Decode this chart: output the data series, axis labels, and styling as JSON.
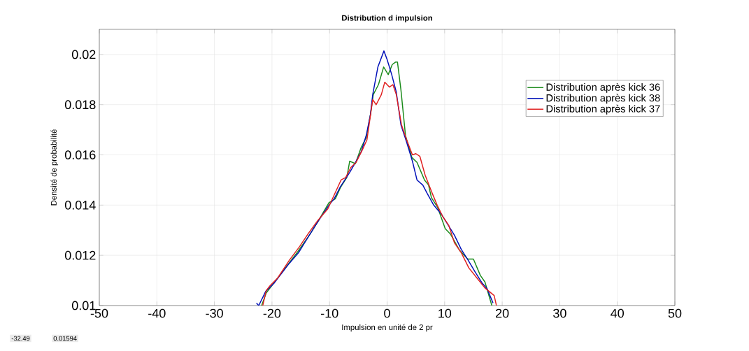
{
  "chart_data": {
    "type": "line",
    "title": "Distribution d impulsion",
    "xlabel": "Impulsion en unité de 2 pr",
    "ylabel": "Densité de probabilité",
    "xlim": [
      -50,
      50
    ],
    "ylim": [
      0.01,
      0.021
    ],
    "xticks": [
      -50,
      -40,
      -30,
      -20,
      -10,
      0,
      10,
      20,
      30,
      40,
      50
    ],
    "yticks": [
      0.01,
      0.012,
      0.014,
      0.016,
      0.018,
      0.02
    ],
    "grid": true,
    "legend": "right",
    "line_style": "solid",
    "marker": "none",
    "annotations": [
      "-32.49",
      "0.01594"
    ],
    "series": [
      {
        "name": "Distribution après kick 36",
        "color": "#1a8a1a",
        "x": [
          -21.8,
          -21.0,
          -19.5,
          -17.0,
          -15.5,
          -13.8,
          -12.0,
          -10.1,
          -9.0,
          -8.1,
          -7.0,
          -6.5,
          -5.5,
          -4.5,
          -3.6,
          -2.9,
          -2.4,
          -1.5,
          -0.6,
          0.2,
          0.9,
          1.5,
          1.8,
          2.4,
          3.2,
          4.3,
          5.2,
          6.5,
          7.2,
          7.7,
          8.8,
          10.1,
          11.0,
          12.6,
          14.0,
          15.0,
          16.2,
          17.0,
          18.2
        ],
        "values": [
          0.01,
          0.0105,
          0.01095,
          0.0117,
          0.01215,
          0.0127,
          0.01335,
          0.0141,
          0.01425,
          0.0147,
          0.0151,
          0.01575,
          0.01565,
          0.0163,
          0.0167,
          0.0176,
          0.0184,
          0.0188,
          0.0195,
          0.0192,
          0.0196,
          0.0197,
          0.0197,
          0.0186,
          0.01677,
          0.0159,
          0.0157,
          0.015,
          0.0148,
          0.0143,
          0.0139,
          0.01306,
          0.01285,
          0.0122,
          0.01185,
          0.01185,
          0.0112,
          0.01094,
          0.01
        ]
      },
      {
        "name": "Distribution après kick 38",
        "color": "#0010b8",
        "x": [
          -22.7,
          -22.3,
          -21.1,
          -19.6,
          -17.0,
          -15.4,
          -13.8,
          -12.0,
          -10.1,
          -9.2,
          -8.1,
          -6.5,
          -5.5,
          -4.5,
          -3.6,
          -2.9,
          -2.5,
          -1.6,
          -0.55,
          0.0,
          0.8,
          1.6,
          2.4,
          3.4,
          4.4,
          5.2,
          6.2,
          7.0,
          8.1,
          9.4,
          10.5,
          11.7,
          12.9,
          14.1,
          15.4,
          16.5,
          17.4,
          18.4
        ],
        "values": [
          0.0101,
          0.01,
          0.01056,
          0.0109,
          0.01168,
          0.0121,
          0.0127,
          0.01335,
          0.014,
          0.01425,
          0.01474,
          0.0153,
          0.0157,
          0.01612,
          0.0168,
          0.0176,
          0.0184,
          0.0195,
          0.02014,
          0.0198,
          0.0192,
          0.0185,
          0.0172,
          0.0165,
          0.01575,
          0.015,
          0.0148,
          0.01445,
          0.014,
          0.01365,
          0.01325,
          0.0128,
          0.01223,
          0.0118,
          0.0113,
          0.0109,
          0.01066,
          0.0101
        ]
      },
      {
        "name": "Distribution après kick 37",
        "color": "#e02020",
        "x": [
          -21.6,
          -21.0,
          -20.3,
          -19.0,
          -17.0,
          -15.2,
          -13.6,
          -12.0,
          -10.3,
          -9.2,
          -8.0,
          -7.2,
          -6.3,
          -5.4,
          -4.3,
          -3.5,
          -2.5,
          -1.9,
          -1.0,
          -0.4,
          0.4,
          1.0,
          1.6,
          2.5,
          3.4,
          4.4,
          5.0,
          5.7,
          6.6,
          7.7,
          8.7,
          9.7,
          10.7,
          11.7,
          12.9,
          14.2,
          15.6,
          17.0,
          18.6,
          19.0
        ],
        "values": [
          0.01,
          0.0106,
          0.0108,
          0.0111,
          0.0118,
          0.01235,
          0.0129,
          0.0134,
          0.01385,
          0.0144,
          0.015,
          0.0151,
          0.0155,
          0.0157,
          0.0162,
          0.0166,
          0.0182,
          0.018,
          0.0184,
          0.0189,
          0.0187,
          0.0188,
          0.0184,
          0.0172,
          0.0166,
          0.016,
          0.01605,
          0.01594,
          0.0152,
          0.01455,
          0.014,
          0.01353,
          0.0132,
          0.0125,
          0.0121,
          0.0115,
          0.0111,
          0.0107,
          0.0104,
          0.01
        ]
      }
    ]
  }
}
